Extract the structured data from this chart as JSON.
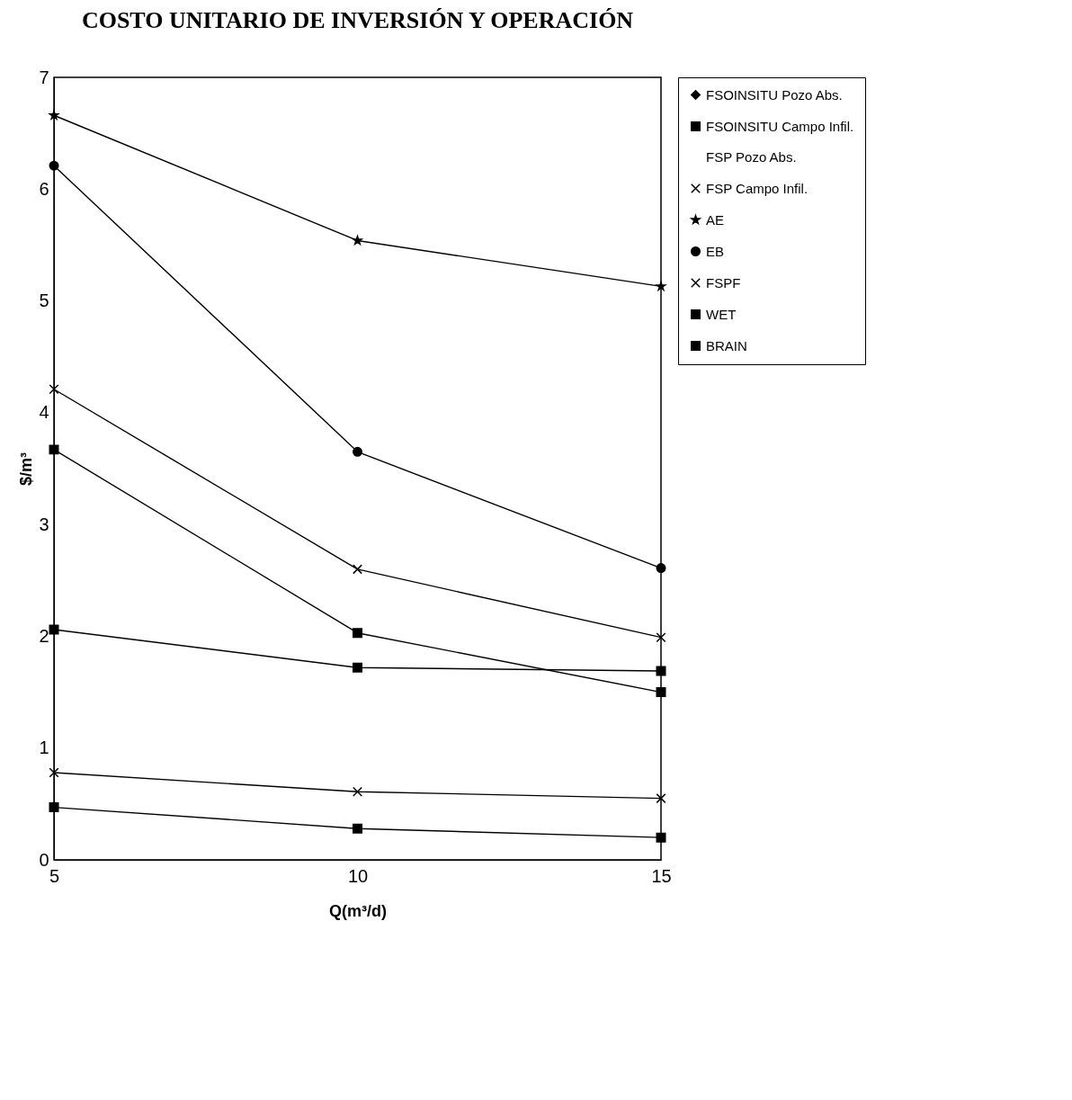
{
  "chart_data": {
    "type": "line",
    "title": "COSTO UNITARIO DE INVERSIÓN Y OPERACIÓN",
    "xlabel": "Q(m³/d)",
    "ylabel": "$/m³",
    "x": [
      5,
      10,
      15
    ],
    "xlim": [
      5,
      15
    ],
    "xticks": [
      5,
      10,
      15
    ],
    "ylim": [
      0,
      7
    ],
    "yticks": [
      0,
      1,
      2,
      3,
      4,
      5,
      6,
      7
    ],
    "grid": false,
    "legend": "right",
    "series": [
      {
        "name": "FSOINSITU Pozo Abs.",
        "color": "#000000",
        "marker": "diamond",
        "values": [
          null,
          null,
          null
        ]
      },
      {
        "name": "FSOINSITU Campo Infil.",
        "color": "#000000",
        "marker": "square",
        "values": [
          0.47,
          0.28,
          0.2
        ]
      },
      {
        "name": "FSP Pozo Abs.",
        "color": "#000000",
        "marker": "none",
        "values": [
          null,
          null,
          null
        ]
      },
      {
        "name": "FSP Campo Infil.",
        "color": "#000000",
        "marker": "cross",
        "values": [
          0.78,
          0.61,
          0.55
        ]
      },
      {
        "name": "AE",
        "color": "#000000",
        "marker": "star",
        "values": [
          6.66,
          5.54,
          5.13
        ]
      },
      {
        "name": "EB",
        "color": "#000000",
        "marker": "circle",
        "values": [
          6.21,
          3.65,
          2.61
        ]
      },
      {
        "name": "FSPF",
        "color": "#000000",
        "marker": "cross",
        "values": [
          4.21,
          2.6,
          1.99
        ]
      },
      {
        "name": "WET",
        "color": "#000000",
        "marker": "square",
        "values": [
          3.67,
          2.03,
          1.5
        ]
      },
      {
        "name": "BRAIN",
        "color": "#000000",
        "marker": "square",
        "values": [
          2.06,
          1.72,
          1.69
        ]
      }
    ]
  }
}
